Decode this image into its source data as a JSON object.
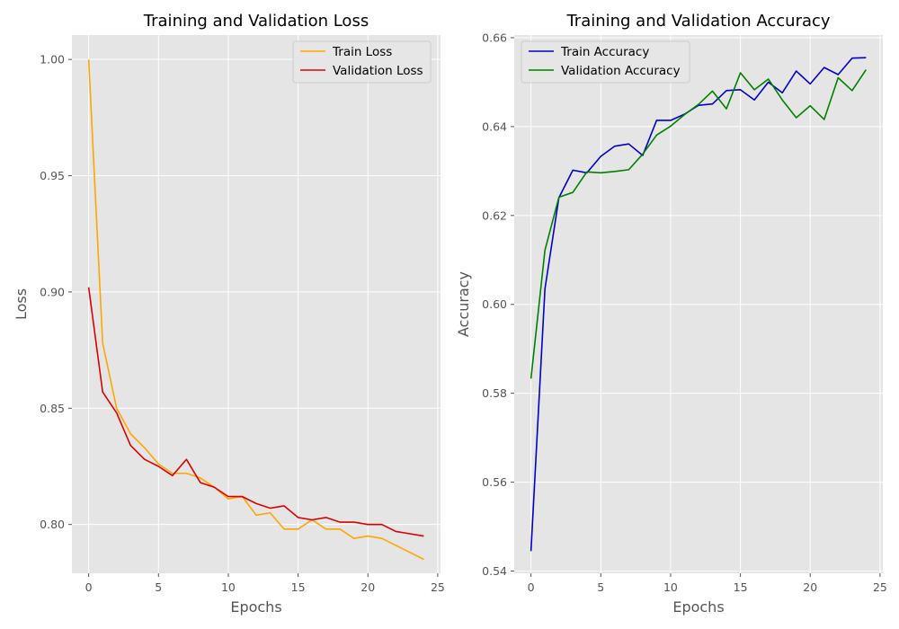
{
  "chart_data": [
    {
      "type": "line",
      "title": "Training and Validation Loss",
      "xlabel": "Epochs",
      "ylabel": "Loss",
      "xlim": [
        -1.2,
        25.2
      ],
      "ylim": [
        0.779,
        1.0105
      ],
      "xticks": [
        0,
        5,
        10,
        15,
        20,
        25
      ],
      "yticks": [
        0.8,
        0.85,
        0.9,
        0.95,
        1.0
      ],
      "ytick_decimals": 2,
      "grid": true,
      "legend_position": "top-right",
      "x": [
        0,
        1,
        2,
        3,
        4,
        5,
        6,
        7,
        8,
        9,
        10,
        11,
        12,
        13,
        14,
        15,
        16,
        17,
        18,
        19,
        20,
        21,
        22,
        23,
        24
      ],
      "series": [
        {
          "name": "Train Loss",
          "color": "#ffa500",
          "values": [
            1.0,
            0.878,
            0.85,
            0.839,
            0.833,
            0.826,
            0.822,
            0.822,
            0.82,
            0.816,
            0.811,
            0.812,
            0.804,
            0.805,
            0.798,
            0.798,
            0.802,
            0.798,
            0.798,
            0.794,
            0.795,
            0.794,
            0.791,
            0.788,
            0.785
          ]
        },
        {
          "name": "Validation Loss",
          "color": "#dd0000",
          "values": [
            0.902,
            0.857,
            0.848,
            0.834,
            0.828,
            0.825,
            0.821,
            0.828,
            0.818,
            0.816,
            0.812,
            0.812,
            0.809,
            0.807,
            0.808,
            0.803,
            0.802,
            0.803,
            0.801,
            0.801,
            0.8,
            0.8,
            0.797,
            0.796,
            0.795
          ]
        }
      ]
    },
    {
      "type": "line",
      "title": "Training and Validation Accuracy",
      "xlabel": "Epochs",
      "ylabel": "Accuracy",
      "xlim": [
        -1.2,
        25.2
      ],
      "ylim": [
        0.5395,
        0.6606
      ],
      "xticks": [
        0,
        5,
        10,
        15,
        20,
        25
      ],
      "yticks": [
        0.54,
        0.56,
        0.58,
        0.6,
        0.62,
        0.64,
        0.66
      ],
      "ytick_decimals": 2,
      "grid": true,
      "legend_position": "top-left",
      "x": [
        0,
        1,
        2,
        3,
        4,
        5,
        6,
        7,
        8,
        9,
        10,
        11,
        12,
        13,
        14,
        15,
        16,
        17,
        18,
        19,
        20,
        21,
        22,
        23,
        24
      ],
      "series": [
        {
          "name": "Train Accuracy",
          "color": "#0000cc",
          "values": [
            0.5445,
            0.6035,
            0.624,
            0.6302,
            0.6296,
            0.6333,
            0.6356,
            0.6361,
            0.6335,
            0.6414,
            0.6414,
            0.6428,
            0.6448,
            0.6451,
            0.6481,
            0.6483,
            0.646,
            0.65,
            0.6476,
            0.6525,
            0.6496,
            0.6533,
            0.6517,
            0.6554,
            0.6555
          ]
        },
        {
          "name": "Validation Accuracy",
          "color": "#008000",
          "values": [
            0.5833,
            0.6122,
            0.6241,
            0.6252,
            0.6298,
            0.6296,
            0.6299,
            0.6303,
            0.6338,
            0.6381,
            0.6401,
            0.6427,
            0.645,
            0.648,
            0.644,
            0.6521,
            0.6483,
            0.6507,
            0.646,
            0.642,
            0.6447,
            0.6416,
            0.651,
            0.6481,
            0.6528
          ]
        }
      ]
    }
  ]
}
